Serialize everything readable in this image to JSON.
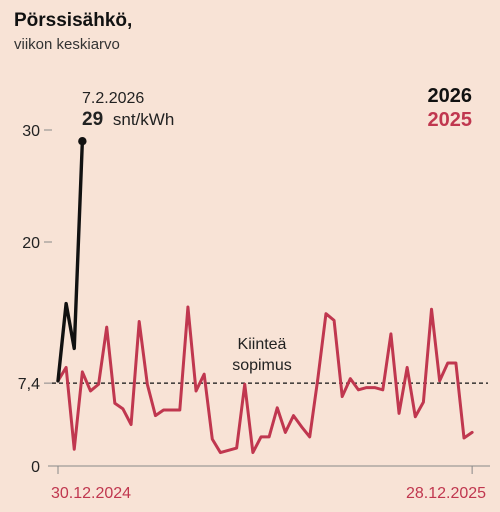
{
  "chart_data": {
    "type": "line",
    "title": "Pörssisähkö,",
    "subtitle": "viikon keskiarvo",
    "x_start_label": "30.12.2024",
    "x_end_label": "28.12.2025",
    "ylim": [
      0,
      33
    ],
    "y_ticks": [
      0,
      7.4,
      20,
      30
    ],
    "y_tick_labels": [
      "0",
      "7,4",
      "20",
      "30"
    ],
    "reference_line": {
      "value": 7.4,
      "label_line1": "Kiinteä",
      "label_line2": "sopimus"
    },
    "annotation": {
      "date": "7.2.2026",
      "value": "29",
      "unit": "snt/kWh"
    },
    "series": [
      {
        "name": "2026",
        "color": "#111111",
        "values": [
          7.6,
          14.5,
          10.5,
          29
        ]
      },
      {
        "name": "2025",
        "color": "#c0374f",
        "values": [
          7.6,
          8.8,
          1.5,
          8.4,
          6.7,
          7.3,
          12.4,
          5.6,
          5.1,
          3.7,
          12.9,
          7.3,
          4.5,
          5.0,
          5.0,
          5.0,
          14.2,
          6.7,
          8.2,
          2.4,
          1.2,
          1.4,
          1.6,
          7.3,
          1.2,
          2.6,
          2.6,
          5.2,
          3.0,
          4.5,
          3.5,
          2.6,
          7.8,
          13.6,
          13.0,
          6.2,
          7.8,
          6.8,
          7.0,
          7.0,
          6.8,
          11.8,
          4.7,
          8.8,
          4.4,
          5.7,
          14.0,
          7.6,
          9.2,
          9.2,
          2.5,
          3.0
        ]
      }
    ]
  }
}
